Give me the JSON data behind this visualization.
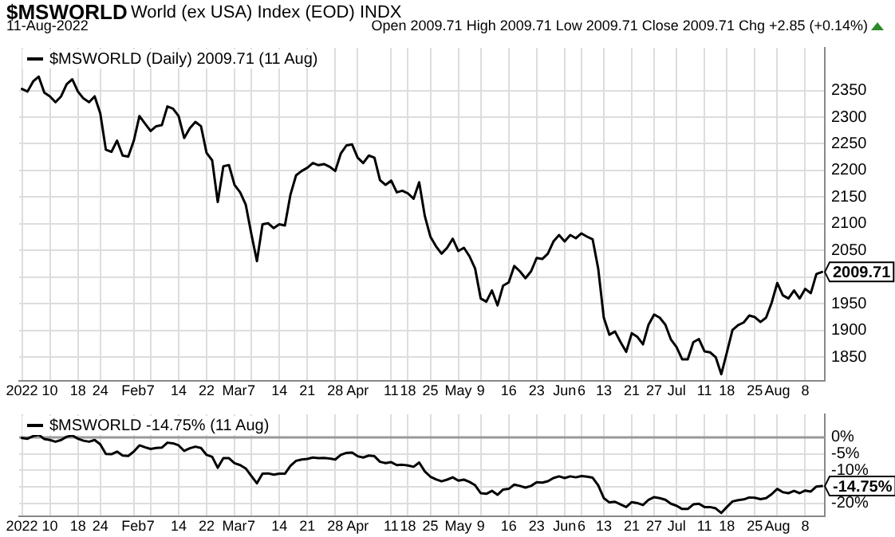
{
  "chart_data": [
    {
      "type": "line",
      "title": "$MSWORLD",
      "subtitle": "World (ex USA) Index (EOD) INDX",
      "annotations": [
        "11-Aug-2022",
        "Open 2009.71 High 2009.71 Low 2009.71 Close 2009.71 Chg +2.85 (+0.14%)",
        "2009.71"
      ],
      "categories": [
        "2022",
        null,
        null,
        null,
        null,
        "10",
        null,
        null,
        null,
        null,
        "18",
        null,
        null,
        null,
        "24",
        null,
        null,
        null,
        null,
        null,
        "Feb",
        null,
        null,
        "7",
        null,
        null,
        null,
        null,
        "14",
        null,
        null,
        null,
        null,
        "22",
        null,
        null,
        null,
        null,
        "Mar",
        null,
        null,
        "7",
        null,
        null,
        null,
        null,
        "14",
        null,
        null,
        null,
        null,
        "21",
        null,
        null,
        null,
        null,
        "28",
        null,
        null,
        null,
        "Apr",
        null,
        null,
        null,
        null,
        null,
        "11",
        null,
        null,
        "18",
        null,
        null,
        null,
        "25",
        null,
        null,
        null,
        null,
        "May",
        null,
        null,
        null,
        "9",
        null,
        null,
        null,
        null,
        "16",
        null,
        null,
        null,
        null,
        "23",
        null,
        null,
        null,
        null,
        "Jun",
        null,
        null,
        "6",
        null,
        null,
        null,
        "13",
        null,
        null,
        null,
        null,
        "21",
        null,
        null,
        null,
        "27",
        null,
        null,
        null,
        "Jul",
        null,
        null,
        null,
        null,
        "11",
        null,
        null,
        null,
        "18",
        null,
        null,
        null,
        null,
        "25",
        null,
        null,
        null,
        "Aug",
        null,
        null,
        null,
        null,
        "8",
        null,
        null,
        null
      ],
      "series": [
        {
          "name": "$MSWORLD (Daily) 2009.71 (11 Aug)",
          "color": "#000000",
          "values": [
            2353,
            2348,
            2367,
            2376,
            2346,
            2339,
            2328,
            2339,
            2362,
            2371,
            2348,
            2335,
            2328,
            2339,
            2307,
            2239,
            2235,
            2256,
            2228,
            2226,
            2256,
            2302,
            2288,
            2274,
            2283,
            2285,
            2320,
            2316,
            2302,
            2261,
            2279,
            2291,
            2283,
            2233,
            2219,
            2141,
            2208,
            2210,
            2173,
            2159,
            2136,
            2081,
            2030,
            2099,
            2101,
            2092,
            2099,
            2097,
            2155,
            2191,
            2199,
            2205,
            2214,
            2210,
            2212,
            2207,
            2199,
            2232,
            2247,
            2249,
            2224,
            2214,
            2228,
            2224,
            2182,
            2173,
            2181,
            2159,
            2162,
            2157,
            2147,
            2178,
            2115,
            2076,
            2058,
            2044,
            2055,
            2072,
            2049,
            2055,
            2039,
            2016,
            1960,
            1954,
            1975,
            1947,
            1984,
            1990,
            2021,
            2011,
            1998,
            2011,
            2036,
            2034,
            2044,
            2067,
            2079,
            2067,
            2079,
            2073,
            2082,
            2076,
            2071,
            2016,
            1924,
            1892,
            1898,
            1878,
            1860,
            1895,
            1888,
            1874,
            1911,
            1930,
            1924,
            1911,
            1883,
            1869,
            1846,
            1846,
            1878,
            1884,
            1861,
            1859,
            1850,
            1818,
            1859,
            1901,
            1910,
            1915,
            1928,
            1925,
            1916,
            1924,
            1952,
            1989,
            1966,
            1960,
            1975,
            1960,
            1978,
            1970,
            2006,
            2009.71
          ]
        }
      ],
      "ylim": [
        1805,
        2430
      ],
      "yticks": [
        1850,
        1900,
        1950,
        {
          "value": 2000,
          "label": null
        },
        2050,
        2100,
        2150,
        2200,
        2250,
        2300,
        2350
      ],
      "grid": true,
      "legend": "top left",
      "marker": "none",
      "line_style": "solid"
    },
    {
      "type": "line",
      "annotations": [
        "-14.75%"
      ],
      "categories": [
        "2022",
        null,
        null,
        null,
        null,
        "10",
        null,
        null,
        null,
        null,
        "18",
        null,
        null,
        null,
        "24",
        null,
        null,
        null,
        null,
        null,
        "Feb",
        null,
        null,
        "7",
        null,
        null,
        null,
        null,
        "14",
        null,
        null,
        null,
        null,
        "22",
        null,
        null,
        null,
        null,
        "Mar",
        null,
        null,
        "7",
        null,
        null,
        null,
        null,
        "14",
        null,
        null,
        null,
        null,
        "21",
        null,
        null,
        null,
        null,
        "28",
        null,
        null,
        null,
        "Apr",
        null,
        null,
        null,
        null,
        null,
        "11",
        null,
        null,
        "18",
        null,
        null,
        null,
        "25",
        null,
        null,
        null,
        null,
        "May",
        null,
        null,
        null,
        "9",
        null,
        null,
        null,
        null,
        "16",
        null,
        null,
        null,
        null,
        "23",
        null,
        null,
        null,
        null,
        "Jun",
        null,
        null,
        "6",
        null,
        null,
        null,
        "13",
        null,
        null,
        null,
        null,
        "21",
        null,
        null,
        null,
        "27",
        null,
        null,
        null,
        "Jul",
        null,
        null,
        null,
        null,
        "11",
        null,
        null,
        null,
        "18",
        null,
        null,
        null,
        null,
        "25",
        null,
        null,
        null,
        "Aug",
        null,
        null,
        null,
        null,
        "8",
        null,
        null,
        null
      ],
      "series": [
        {
          "name": "$MSWORLD -14.75% (11 Aug)",
          "color": "#000000",
          "values": [
            -0.2,
            -0.4,
            0.4,
            0.8,
            -0.5,
            -0.8,
            -1.3,
            -0.8,
            0.2,
            0.6,
            -0.4,
            -1.0,
            -1.3,
            -0.8,
            -2.1,
            -5.0,
            -5.1,
            -4.3,
            -5.5,
            -5.6,
            -4.3,
            -2.4,
            -3.0,
            -3.5,
            -3.2,
            -3.1,
            -1.6,
            -1.8,
            -2.4,
            -4.1,
            -3.3,
            -2.8,
            -3.2,
            -5.3,
            -5.9,
            -9.2,
            -6.3,
            -6.3,
            -7.8,
            -8.4,
            -9.4,
            -11.7,
            -13.9,
            -11.0,
            -10.9,
            -11.3,
            -11.0,
            -11.0,
            -8.6,
            -7.1,
            -6.7,
            -6.5,
            -6.1,
            -6.3,
            -6.2,
            -6.4,
            -6.7,
            -5.3,
            -4.7,
            -4.6,
            -5.7,
            -6.1,
            -5.5,
            -5.7,
            -7.4,
            -7.8,
            -7.5,
            -8.4,
            -8.3,
            -8.5,
            -8.9,
            -7.6,
            -10.3,
            -11.9,
            -12.7,
            -13.3,
            -12.8,
            -12.1,
            -13.1,
            -12.8,
            -13.5,
            -14.5,
            -16.9,
            -17.1,
            -16.2,
            -17.4,
            -15.8,
            -15.6,
            -14.3,
            -14.7,
            -15.2,
            -14.7,
            -13.6,
            -13.7,
            -13.3,
            -12.3,
            -11.8,
            -12.3,
            -11.8,
            -12.1,
            -11.7,
            -11.9,
            -12.2,
            -14.5,
            -18.4,
            -19.7,
            -19.5,
            -20.3,
            -21.1,
            -19.6,
            -19.9,
            -20.5,
            -18.9,
            -18.1,
            -18.4,
            -18.9,
            -20.1,
            -20.7,
            -21.7,
            -21.7,
            -20.3,
            -20.1,
            -21.1,
            -21.1,
            -21.5,
            -22.9,
            -21.1,
            -19.4,
            -19.0,
            -18.8,
            -18.2,
            -18.3,
            -18.7,
            -18.4,
            -17.2,
            -15.6,
            -16.6,
            -16.9,
            -16.2,
            -16.9,
            -16.1,
            -16.4,
            -14.9,
            -14.75
          ]
        }
      ],
      "ylim": [
        -24,
        7
      ],
      "yticks": [
        {
          "value": 0,
          "label": "0%"
        },
        {
          "value": -5,
          "label": "-5%"
        },
        {
          "value": -10,
          "label": "-10%"
        },
        {
          "value": -15,
          "label": null
        },
        {
          "value": -20,
          "label": "-20%"
        }
      ],
      "ref_lines": [
        {
          "axis": "y",
          "value": 0,
          "color": "#999999"
        }
      ],
      "grid": true,
      "legend": "top left",
      "marker": "none",
      "line_style": "solid"
    }
  ]
}
